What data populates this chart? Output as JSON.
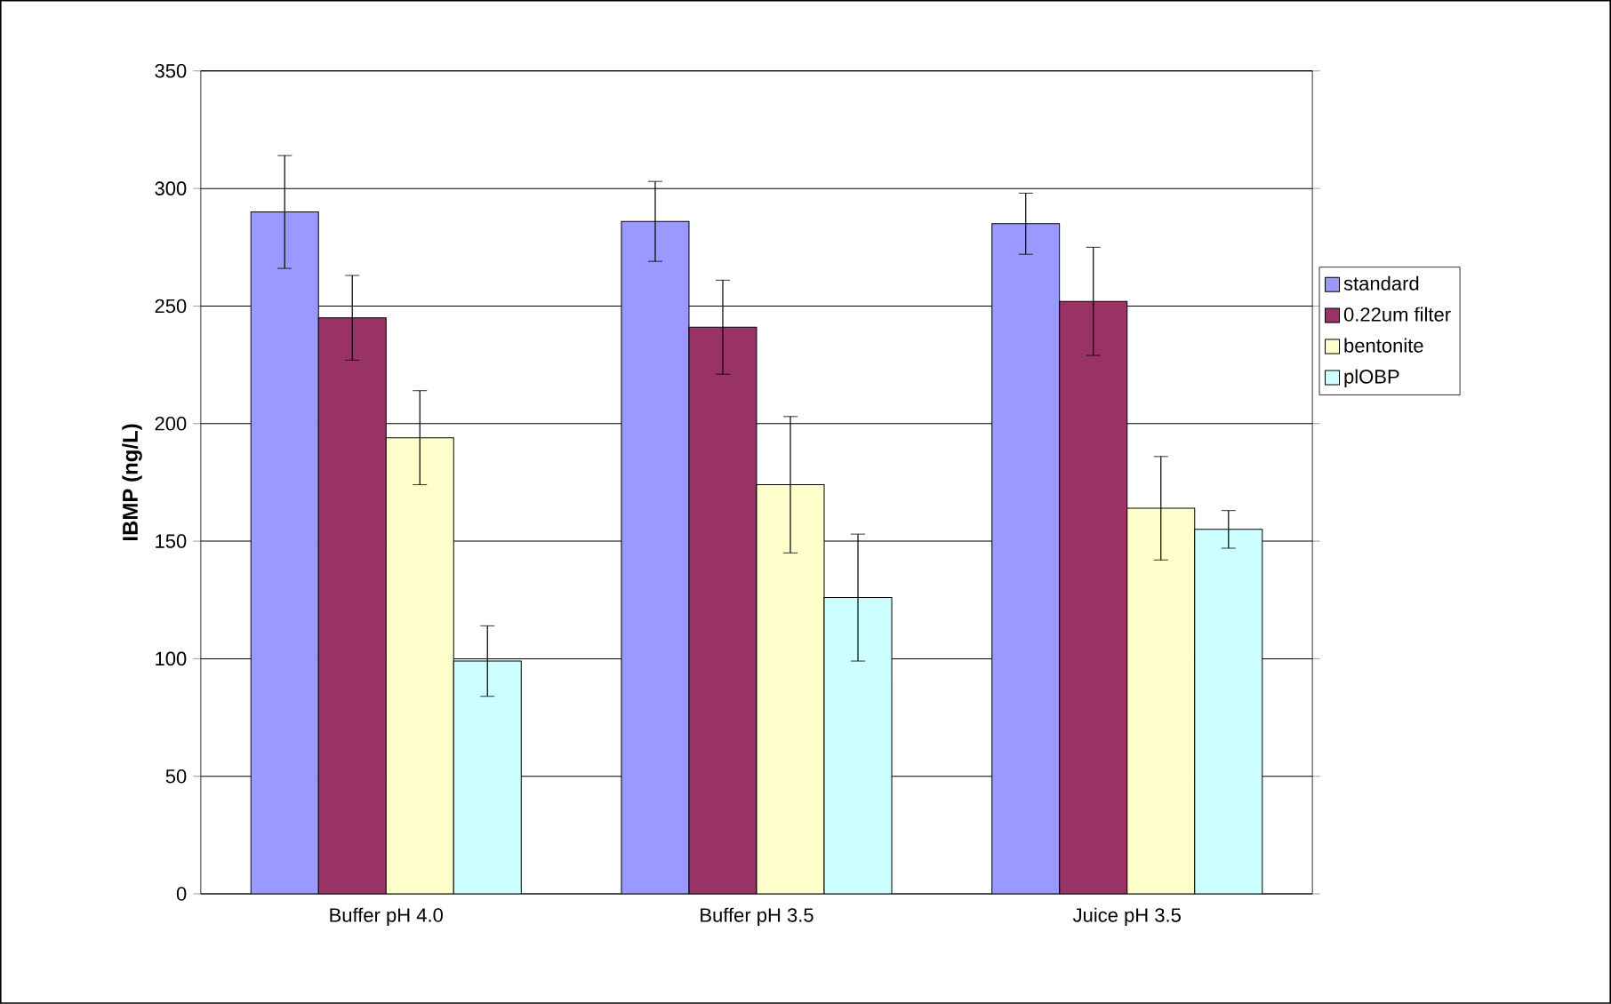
{
  "chart_data": {
    "type": "bar",
    "ylabel": "IBMP (ng/L)",
    "categories": [
      "Buffer pH 4.0",
      "Buffer pH 3.5",
      "Juice pH 3.5"
    ],
    "series": [
      {
        "name": "standard",
        "color": "#9999ff",
        "values": [
          290,
          286,
          285
        ],
        "errors": [
          24,
          17,
          13
        ]
      },
      {
        "name": "0.22um filter",
        "color": "#993366",
        "values": [
          245,
          241,
          252
        ],
        "errors": [
          18,
          20,
          23
        ]
      },
      {
        "name": "bentonite",
        "color": "#ffffcc",
        "values": [
          194,
          174,
          164
        ],
        "errors": [
          20,
          29,
          22
        ]
      },
      {
        "name": "plOBP",
        "color": "#ccffff",
        "values": [
          99,
          126,
          155
        ],
        "errors": [
          15,
          27,
          8
        ]
      }
    ],
    "ylim": [
      0,
      350
    ],
    "yticks": [
      0,
      50,
      100,
      150,
      200,
      250,
      300,
      350
    ],
    "grid": "y",
    "legend": "right"
  }
}
